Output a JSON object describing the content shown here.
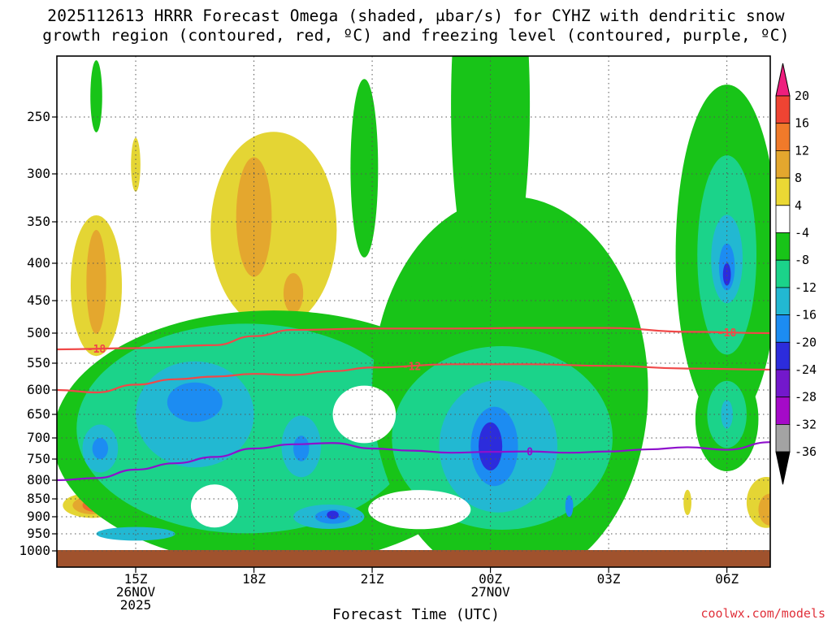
{
  "title_line1": "2025112613 HRRR Forecast Omega (shaded, μbar/s) for CYHZ with dendritic snow",
  "title_line2": "growth region (contoured, red, ºC) and freezing level (contoured, purple, ºC)",
  "xlabel": "Forecast Time (UTC)",
  "credit": "coolwx.com/models",
  "chart_data": {
    "type": "time-height",
    "x_range_hours": [
      13.0,
      31.1
    ],
    "y_levels_hPa": [
      250,
      300,
      350,
      400,
      450,
      500,
      550,
      600,
      650,
      700,
      750,
      800,
      850,
      900,
      950,
      1000
    ],
    "x_ticks": [
      {
        "hour": 15,
        "labels": [
          "15Z",
          "26NOV",
          "2025"
        ]
      },
      {
        "hour": 18,
        "labels": [
          "18Z"
        ]
      },
      {
        "hour": 21,
        "labels": [
          "21Z"
        ]
      },
      {
        "hour": 24,
        "labels": [
          "00Z",
          "27NOV"
        ]
      },
      {
        "hour": 27,
        "labels": [
          "03Z"
        ]
      },
      {
        "hour": 30,
        "labels": [
          "06Z"
        ]
      }
    ],
    "grid": true,
    "colorbar": {
      "labels": [
        "20",
        "16",
        "12",
        "8",
        "4",
        "-4",
        "-8",
        "-12",
        "-16",
        "-20",
        "-24",
        "-28",
        "-32",
        "-36"
      ],
      "bins": [
        {
          "color": "#ee1e7e"
        },
        {
          "color": "#ef4433"
        },
        {
          "color": "#f07a2a"
        },
        {
          "color": "#e4a72e"
        },
        {
          "color": "#ebd834"
        },
        {
          "color": "#ffffff"
        },
        {
          "color": "#18c418"
        },
        {
          "color": "#1bd38a"
        },
        {
          "color": "#22b8d2"
        },
        {
          "color": "#1c8cf2"
        },
        {
          "color": "#2c2cdc"
        },
        {
          "color": "#7318cc"
        },
        {
          "color": "#a50ac8"
        },
        {
          "color": "#a3a3a3"
        },
        {
          "color": "#000000"
        }
      ]
    },
    "omega_features": [
      {
        "color": "#e4d534",
        "cx": 14.0,
        "cy": 430,
        "rx": 0.65,
        "ry": 95
      },
      {
        "color": "#e4a72e",
        "cx": 14.0,
        "cy": 425,
        "rx": 0.25,
        "ry": 70
      },
      {
        "color": "#e4d534",
        "cx": 13.9,
        "cy": 868,
        "rx": 0.75,
        "ry": 35
      },
      {
        "color": "#e4a72e",
        "cx": 13.9,
        "cy": 868,
        "rx": 0.5,
        "ry": 25
      },
      {
        "color": "#ef6a2e",
        "cx": 13.95,
        "cy": 868,
        "rx": 0.3,
        "ry": 18
      },
      {
        "color": "#ef3a3a",
        "cx": 14.0,
        "cy": 868,
        "rx": 0.15,
        "ry": 11
      },
      {
        "color": "#e4d534",
        "cx": 15.0,
        "cy": 292,
        "rx": 0.12,
        "ry": 25
      },
      {
        "color": "#e4d534",
        "cx": 18.5,
        "cy": 360,
        "rx": 1.6,
        "ry": 110
      },
      {
        "color": "#e4a72e",
        "cx": 18.0,
        "cy": 345,
        "rx": 0.45,
        "ry": 65
      },
      {
        "color": "#e4a72e",
        "cx": 19.0,
        "cy": 440,
        "rx": 0.25,
        "ry": 28
      },
      {
        "color": "#e4d534",
        "cx": 31.0,
        "cy": 860,
        "rx": 0.5,
        "ry": 70
      },
      {
        "color": "#e4a72e",
        "cx": 31.1,
        "cy": 880,
        "rx": 0.3,
        "ry": 45
      },
      {
        "color": "#e4d534",
        "cx": 29.0,
        "cy": 860,
        "rx": 0.1,
        "ry": 35
      },
      {
        "color": "#18c418",
        "cx": 14.0,
        "cy": 233,
        "rx": 0.15,
        "ry": 30
      },
      {
        "color": "#18c418",
        "cx": 20.8,
        "cy": 295,
        "rx": 0.35,
        "ry": 85
      },
      {
        "color": "#18c418",
        "cx": 18.5,
        "cy": 700,
        "rx": 5.6,
        "ry": 270
      },
      {
        "color": "#1bd38a",
        "cx": 17.8,
        "cy": 680,
        "rx": 4.3,
        "ry": 220
      },
      {
        "color": "#22b8d2",
        "cx": 16.5,
        "cy": 650,
        "rx": 1.5,
        "ry": 110
      },
      {
        "color": "#1c8cf2",
        "cx": 16.5,
        "cy": 625,
        "rx": 0.7,
        "ry": 40
      },
      {
        "color": "#22b8d2",
        "cx": 14.1,
        "cy": 725,
        "rx": 0.45,
        "ry": 55
      },
      {
        "color": "#1c8cf2",
        "cx": 14.1,
        "cy": 725,
        "rx": 0.2,
        "ry": 25
      },
      {
        "color": "#22b8d2",
        "cx": 19.2,
        "cy": 720,
        "rx": 0.5,
        "ry": 70
      },
      {
        "color": "#1c8cf2",
        "cx": 19.2,
        "cy": 725,
        "rx": 0.2,
        "ry": 30
      },
      {
        "color": "#22b8d2",
        "cx": 19.9,
        "cy": 900,
        "rx": 0.9,
        "ry": 35
      },
      {
        "color": "#1c8cf2",
        "cx": 20.0,
        "cy": 900,
        "rx": 0.45,
        "ry": 20
      },
      {
        "color": "#2c2cdc",
        "cx": 20.0,
        "cy": 895,
        "rx": 0.15,
        "ry": 12
      },
      {
        "color": "#22b8d2",
        "cx": 15.0,
        "cy": 950,
        "rx": 1.0,
        "ry": 20
      },
      {
        "color": "#18c418",
        "cx": 24.5,
        "cy": 600,
        "rx": 3.5,
        "ry": 330
      },
      {
        "color": "#18c418",
        "cx": 24.0,
        "cy": 240,
        "rx": 1.0,
        "ry": 190
      },
      {
        "color": "#1bd38a",
        "cx": 24.3,
        "cy": 700,
        "rx": 2.8,
        "ry": 200
      },
      {
        "color": "#22b8d2",
        "cx": 24.2,
        "cy": 720,
        "rx": 1.5,
        "ry": 150
      },
      {
        "color": "#1c8cf2",
        "cx": 24.1,
        "cy": 720,
        "rx": 0.6,
        "ry": 90
      },
      {
        "color": "#2c2cdc",
        "cx": 24.0,
        "cy": 720,
        "rx": 0.3,
        "ry": 55
      },
      {
        "color": "#1c8cf2",
        "cx": 26.0,
        "cy": 870,
        "rx": 0.1,
        "ry": 30
      },
      {
        "color": "#18c418",
        "cx": 30.0,
        "cy": 390,
        "rx": 1.3,
        "ry": 200
      },
      {
        "color": "#1bd38a",
        "cx": 30.0,
        "cy": 390,
        "rx": 0.75,
        "ry": 120
      },
      {
        "color": "#22b8d2",
        "cx": 30.0,
        "cy": 395,
        "rx": 0.4,
        "ry": 55
      },
      {
        "color": "#1c8cf2",
        "cx": 30.0,
        "cy": 405,
        "rx": 0.2,
        "ry": 30
      },
      {
        "color": "#2c2cdc",
        "cx": 30.0,
        "cy": 415,
        "rx": 0.1,
        "ry": 15
      },
      {
        "color": "#18c418",
        "cx": 30.0,
        "cy": 660,
        "rx": 0.8,
        "ry": 110
      },
      {
        "color": "#1bd38a",
        "cx": 30.0,
        "cy": 650,
        "rx": 0.5,
        "ry": 70
      },
      {
        "color": "#22b8d2",
        "cx": 30.0,
        "cy": 650,
        "rx": 0.15,
        "ry": 30
      }
    ],
    "omega_clear_regions": [
      {
        "cx": 20.8,
        "cy": 650,
        "rx": 0.8,
        "ry": 60
      },
      {
        "cx": 22.2,
        "cy": 880,
        "rx": 1.3,
        "ry": 55
      },
      {
        "cx": 17.0,
        "cy": 870,
        "rx": 0.6,
        "ry": 60
      }
    ],
    "contours": [
      {
        "value": "-18",
        "color": "#f04848",
        "label_at": [
          14.0,
          30.0
        ],
        "x": [
          13.0,
          15.0,
          17.0,
          18.0,
          19.0,
          21.0,
          23.0,
          25.0,
          27.0,
          29.0,
          31.1
        ],
        "p": [
          527,
          525,
          520,
          505,
          495,
          493,
          493,
          492,
          492,
          498,
          500
        ]
      },
      {
        "value": "-12",
        "color": "#f04848",
        "label_at": [
          22.0
        ],
        "x": [
          13.0,
          14.0,
          15.0,
          16.0,
          17.0,
          18.0,
          19.0,
          20.0,
          21.0,
          23.0,
          25.0,
          27.0,
          29.0,
          31.1
        ],
        "p": [
          600,
          605,
          590,
          580,
          575,
          570,
          572,
          565,
          558,
          552,
          552,
          555,
          560,
          562
        ]
      },
      {
        "value": "0",
        "color": "#8e10cc",
        "label_at": [
          25.0
        ],
        "x": [
          13.0,
          14.0,
          15.0,
          16.0,
          17.0,
          18.0,
          19.0,
          20.0,
          21.0,
          22.0,
          23.0,
          24.0,
          25.0,
          26.0,
          27.0,
          28.0,
          29.0,
          30.0,
          31.1
        ],
        "p": [
          800,
          795,
          775,
          760,
          745,
          725,
          715,
          712,
          725,
          730,
          735,
          733,
          732,
          735,
          732,
          727,
          722,
          728,
          710
        ]
      }
    ]
  }
}
